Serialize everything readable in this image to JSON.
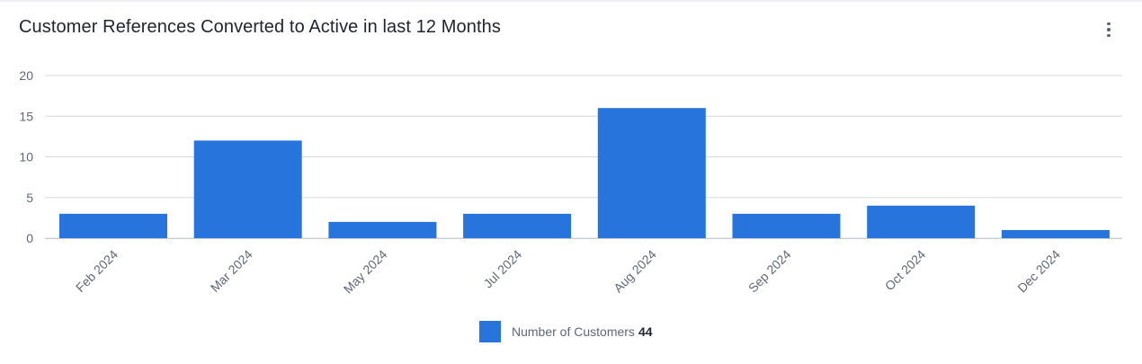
{
  "title": "Customer References Converted to Active in last 12 Months",
  "menu_icon": "more-vertical-icon",
  "colors": {
    "bar": "#2674dc",
    "grid": "#d6d9de",
    "axis_text": "#5f6777"
  },
  "legend": {
    "label": "Number of Customers",
    "count": "44"
  },
  "chart_data": {
    "type": "bar",
    "categories": [
      "Feb 2024",
      "Mar 2024",
      "May 2024",
      "Jul 2024",
      "Aug 2024",
      "Sep 2024",
      "Oct 2024",
      "Dec 2024"
    ],
    "series": [
      {
        "name": "Number of Customers",
        "values": [
          3,
          12,
          2,
          3,
          16,
          3,
          4,
          1
        ]
      }
    ],
    "ylim": [
      0,
      20
    ],
    "yticks": [
      0,
      5,
      10,
      15,
      20
    ],
    "grid": true,
    "legend_position": "bottom-center"
  }
}
